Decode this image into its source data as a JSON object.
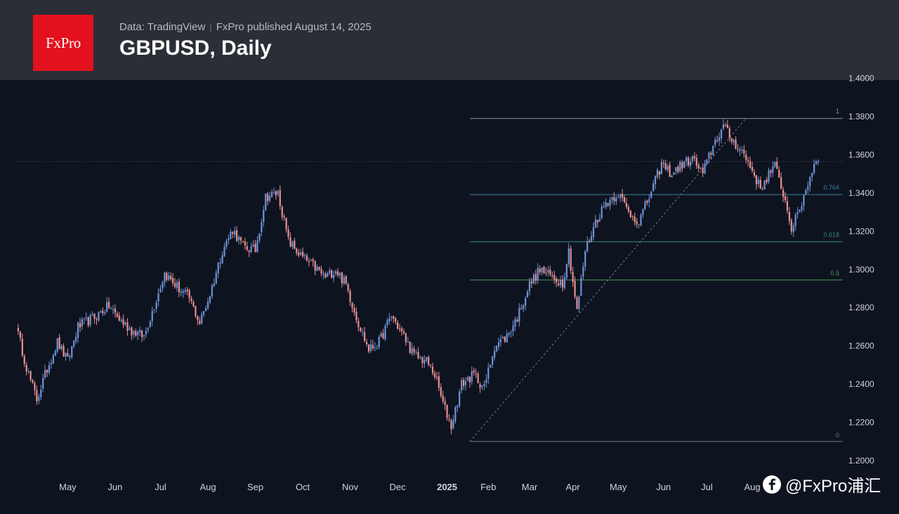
{
  "header": {
    "logo_text": "FxPro",
    "data_source": "Data: TradingView",
    "published": "FxPro published August 14, 2025",
    "title": "GBPUSD, Daily"
  },
  "watermark": {
    "text": "@FxPro浦汇",
    "icon": "f-icon"
  },
  "colors": {
    "background": "#0e1320",
    "header_bg": "#2b2e37",
    "logo_red": "#e3101e",
    "candle_up": "#6f93d6",
    "candle_down": "#e8918f",
    "fib_0": "#787b86",
    "fib_1": "#9598a1",
    "fib_0764": "#3f7e9c",
    "fib_0618": "#2d8f84",
    "fib_05": "#4c9a58"
  },
  "chart_data": {
    "type": "candlestick",
    "symbol": "GBPUSD",
    "timeframe": "Daily",
    "ylim": [
      1.2,
      1.41
    ],
    "y_ticks": [
      "1.2000",
      "1.2200",
      "1.2400",
      "1.2600",
      "1.2800",
      "1.3000",
      "1.3200",
      "1.3400",
      "1.3600",
      "1.3800",
      "1.4000"
    ],
    "x_ticks": [
      "May",
      "Jun",
      "Jul",
      "Aug",
      "Sep",
      "Oct",
      "Nov",
      "Dec",
      "2025",
      "Feb",
      "Mar",
      "Apr",
      "May",
      "Jun",
      "Jul",
      "Aug"
    ],
    "close_path": [
      {
        "t": 0,
        "v": 1.27
      },
      {
        "t": 6,
        "v": 1.245
      },
      {
        "t": 10,
        "v": 1.232
      },
      {
        "t": 15,
        "v": 1.248
      },
      {
        "t": 20,
        "v": 1.262
      },
      {
        "t": 25,
        "v": 1.252
      },
      {
        "t": 30,
        "v": 1.27
      },
      {
        "t": 38,
        "v": 1.275
      },
      {
        "t": 45,
        "v": 1.281
      },
      {
        "t": 50,
        "v": 1.274
      },
      {
        "t": 56,
        "v": 1.268
      },
      {
        "t": 62,
        "v": 1.265
      },
      {
        "t": 66,
        "v": 1.278
      },
      {
        "t": 72,
        "v": 1.298
      },
      {
        "t": 78,
        "v": 1.291
      },
      {
        "t": 84,
        "v": 1.285
      },
      {
        "t": 89,
        "v": 1.272
      },
      {
        "t": 94,
        "v": 1.287
      },
      {
        "t": 100,
        "v": 1.31
      },
      {
        "t": 105,
        "v": 1.321
      },
      {
        "t": 110,
        "v": 1.312
      },
      {
        "t": 116,
        "v": 1.31
      },
      {
        "t": 121,
        "v": 1.338
      },
      {
        "t": 127,
        "v": 1.34
      },
      {
        "t": 132,
        "v": 1.315
      },
      {
        "t": 138,
        "v": 1.307
      },
      {
        "t": 144,
        "v": 1.302
      },
      {
        "t": 150,
        "v": 1.296
      },
      {
        "t": 155,
        "v": 1.3
      },
      {
        "t": 160,
        "v": 1.292
      },
      {
        "t": 166,
        "v": 1.272
      },
      {
        "t": 171,
        "v": 1.258
      },
      {
        "t": 176,
        "v": 1.262
      },
      {
        "t": 182,
        "v": 1.276
      },
      {
        "t": 188,
        "v": 1.265
      },
      {
        "t": 193,
        "v": 1.255
      },
      {
        "t": 199,
        "v": 1.252
      },
      {
        "t": 203,
        "v": 1.245
      },
      {
        "t": 207,
        "v": 1.23
      },
      {
        "t": 211,
        "v": 1.218
      },
      {
        "t": 216,
        "v": 1.24
      },
      {
        "t": 222,
        "v": 1.245
      },
      {
        "t": 227,
        "v": 1.238
      },
      {
        "t": 232,
        "v": 1.26
      },
      {
        "t": 238,
        "v": 1.265
      },
      {
        "t": 243,
        "v": 1.275
      },
      {
        "t": 249,
        "v": 1.292
      },
      {
        "t": 254,
        "v": 1.3
      },
      {
        "t": 260,
        "v": 1.296
      },
      {
        "t": 265,
        "v": 1.293
      },
      {
        "t": 268,
        "v": 1.31
      },
      {
        "t": 272,
        "v": 1.278
      },
      {
        "t": 276,
        "v": 1.31
      },
      {
        "t": 281,
        "v": 1.325
      },
      {
        "t": 286,
        "v": 1.335
      },
      {
        "t": 292,
        "v": 1.34
      },
      {
        "t": 297,
        "v": 1.33
      },
      {
        "t": 302,
        "v": 1.325
      },
      {
        "t": 307,
        "v": 1.338
      },
      {
        "t": 313,
        "v": 1.355
      },
      {
        "t": 318,
        "v": 1.35
      },
      {
        "t": 323,
        "v": 1.355
      },
      {
        "t": 328,
        "v": 1.358
      },
      {
        "t": 333,
        "v": 1.35
      },
      {
        "t": 338,
        "v": 1.365
      },
      {
        "t": 343,
        "v": 1.375
      },
      {
        "t": 347,
        "v": 1.368
      },
      {
        "t": 352,
        "v": 1.362
      },
      {
        "t": 357,
        "v": 1.352
      },
      {
        "t": 361,
        "v": 1.342
      },
      {
        "t": 365,
        "v": 1.35
      },
      {
        "t": 368,
        "v": 1.354
      },
      {
        "t": 372,
        "v": 1.34
      },
      {
        "t": 376,
        "v": 1.322
      },
      {
        "t": 379,
        "v": 1.328
      },
      {
        "t": 383,
        "v": 1.342
      },
      {
        "t": 388,
        "v": 1.358
      }
    ],
    "horizontal_line": 1.3565,
    "fibonacci": {
      "from": 1.21,
      "to": 1.379,
      "levels": [
        {
          "label": "1",
          "value": 1.379
        },
        {
          "label": "0.764",
          "value": 1.3392
        },
        {
          "label": "0.618",
          "value": 1.3145
        },
        {
          "label": "0.5",
          "value": 1.2945
        },
        {
          "label": "0",
          "value": 1.21
        }
      ]
    },
    "trend_line": {
      "from": 1.21,
      "to": 1.379
    }
  }
}
